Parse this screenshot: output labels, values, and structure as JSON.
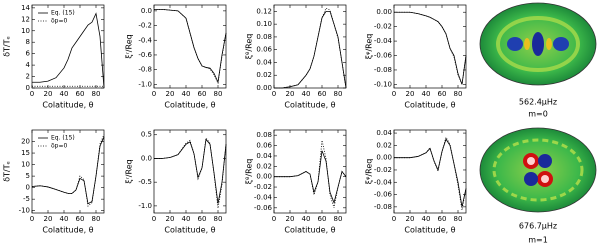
{
  "chart_data": [
    {
      "type": "line",
      "ylabel": "δT/Tₑ",
      "xlabel": "Colatitude, θ",
      "xlim": [
        0,
        90
      ],
      "xticks": [
        0,
        20,
        40,
        60,
        80
      ],
      "ylim": [
        0,
        14.5
      ],
      "yticks": [
        0,
        2,
        4,
        6,
        8,
        10,
        12,
        14
      ],
      "x": [
        0,
        10,
        20,
        30,
        40,
        45,
        50,
        55,
        60,
        65,
        70,
        75,
        80,
        85,
        90
      ],
      "series": [
        {
          "name": "Eq. (15)",
          "color": "#000000",
          "style": "solid",
          "values": [
            1,
            1,
            1.2,
            1.8,
            3.5,
            5,
            7,
            8,
            9,
            10,
            11,
            11.5,
            13,
            9,
            0
          ]
        },
        {
          "name": "δp=0",
          "color": "#000000",
          "style": "dotted",
          "values": [
            0.3,
            0.3,
            0.3,
            0.3,
            0.3,
            0.3,
            0.3,
            0.3,
            0.3,
            0.3,
            0.3,
            0.3,
            0.3,
            0.3,
            0.3
          ]
        }
      ]
    },
    {
      "type": "line",
      "ylabel": "ξʳ/Req",
      "xlabel": "Colatitude, θ",
      "xlim": [
        0,
        90
      ],
      "xticks": [
        0,
        20,
        40,
        60,
        80
      ],
      "ylim": [
        -1.05,
        0.08
      ],
      "yticks": [
        {
          "value": 0,
          "label": "0.0"
        },
        -0.2,
        -0.4,
        -0.6,
        -0.8,
        {
          "value": -1,
          "label": "-1.0"
        }
      ],
      "x": [
        0,
        10,
        20,
        30,
        40,
        45,
        50,
        55,
        60,
        65,
        70,
        75,
        80,
        85,
        90
      ],
      "series": [
        {
          "color": "#000000",
          "style": "solid",
          "values": [
            0.02,
            0.02,
            0.01,
            0,
            -0.1,
            -0.3,
            -0.5,
            -0.65,
            -0.75,
            -0.77,
            -0.78,
            -0.85,
            -0.97,
            -0.6,
            -0.3
          ]
        },
        {
          "color": "#000000",
          "style": "dotted",
          "values": [
            0.02,
            0.02,
            0.01,
            0,
            -0.1,
            -0.3,
            -0.5,
            -0.65,
            -0.75,
            -0.77,
            -0.79,
            -0.87,
            -0.98,
            -0.62,
            -0.3
          ]
        }
      ]
    },
    {
      "type": "line",
      "ylabel": "ξᶿ/Req",
      "xlabel": "Colatitude, θ",
      "xlim": [
        0,
        90
      ],
      "xticks": [
        0,
        20,
        40,
        60,
        80
      ],
      "ylim": [
        0,
        0.13
      ],
      "yticks": [
        {
          "value": 0,
          "label": "0.00"
        },
        0.02,
        0.04,
        0.06,
        0.08,
        {
          "value": 0.1,
          "label": "0.10"
        },
        0.12
      ],
      "x": [
        0,
        10,
        20,
        30,
        40,
        45,
        50,
        55,
        60,
        65,
        70,
        75,
        80,
        85,
        90
      ],
      "series": [
        {
          "color": "#000000",
          "style": "solid",
          "values": [
            0,
            0,
            0.002,
            0.005,
            0.02,
            0.03,
            0.05,
            0.08,
            0.11,
            0.12,
            0.12,
            0.1,
            0.08,
            0.04,
            0
          ]
        },
        {
          "color": "#000000",
          "style": "dotted",
          "values": [
            0,
            0,
            0.002,
            0.005,
            0.02,
            0.03,
            0.05,
            0.08,
            0.11,
            0.125,
            0.122,
            0.1,
            0.078,
            0.04,
            0
          ]
        }
      ]
    },
    {
      "type": "line",
      "ylabel": "ξᵠ/Req",
      "xlabel": "Colatitude, θ",
      "xlim": [
        0,
        90
      ],
      "xticks": [
        0,
        20,
        40,
        60,
        80
      ],
      "ylim": [
        -0.105,
        0.01
      ],
      "yticks": [
        {
          "value": 0,
          "label": "0.00"
        },
        -0.02,
        -0.04,
        -0.06,
        -0.08,
        {
          "value": -0.1,
          "label": "-0.10"
        }
      ],
      "x": [
        0,
        10,
        20,
        30,
        40,
        45,
        50,
        55,
        60,
        65,
        70,
        75,
        80,
        85,
        90
      ],
      "series": [
        {
          "color": "#000000",
          "style": "solid",
          "values": [
            0,
            0,
            0,
            -0.002,
            -0.005,
            -0.007,
            -0.01,
            -0.013,
            -0.02,
            -0.03,
            -0.05,
            -0.06,
            -0.085,
            -0.1,
            -0.06
          ]
        },
        {
          "color": "#000000",
          "style": "dotted",
          "values": [
            0,
            0,
            0,
            -0.002,
            -0.005,
            -0.007,
            -0.01,
            -0.013,
            -0.02,
            -0.03,
            -0.05,
            -0.062,
            -0.087,
            -0.1,
            -0.06
          ]
        }
      ]
    },
    {
      "type": "line",
      "ylabel": "δT/Tₑ",
      "xlabel": "Colatitude, θ",
      "xlim": [
        0,
        90
      ],
      "xticks": [
        0,
        20,
        40,
        60,
        80
      ],
      "ylim": [
        -11,
        25
      ],
      "yticks": [
        -10,
        -5,
        0,
        5,
        10,
        15,
        20
      ],
      "x": [
        0,
        10,
        20,
        30,
        40,
        45,
        50,
        55,
        60,
        65,
        70,
        75,
        80,
        85,
        90
      ],
      "series": [
        {
          "name": "Eq. (15)",
          "color": "#000000",
          "style": "solid",
          "values": [
            0.5,
            0.8,
            0.3,
            -0.8,
            -2,
            -2.5,
            -2.5,
            -1,
            4,
            3,
            -7,
            -6,
            5,
            18,
            22
          ]
        },
        {
          "name": "δp=0",
          "color": "#000000",
          "style": "dotted",
          "values": [
            0.5,
            0.8,
            0.3,
            -0.8,
            -2,
            -2.5,
            -2.6,
            -1,
            5,
            3.5,
            -8,
            -6.5,
            5,
            19,
            23
          ]
        }
      ]
    },
    {
      "type": "line",
      "ylabel": "ξʳ/Req",
      "xlabel": "Colatitude, θ",
      "xlim": [
        0,
        90
      ],
      "xticks": [
        0,
        20,
        40,
        60,
        80
      ],
      "ylim": [
        -1.15,
        0.6
      ],
      "yticks": [
        0.5,
        {
          "value": 0,
          "label": "0.0"
        },
        -0.5,
        {
          "value": -1,
          "label": "-1.0"
        }
      ],
      "x": [
        0,
        10,
        20,
        30,
        40,
        45,
        50,
        55,
        60,
        65,
        70,
        75,
        80,
        85,
        90
      ],
      "series": [
        {
          "color": "#000000",
          "style": "solid",
          "values": [
            0,
            0,
            0.02,
            0.08,
            0.3,
            0.35,
            0.1,
            -0.4,
            -0.2,
            0.4,
            0.3,
            -0.3,
            -0.95,
            -0.5,
            0.3
          ]
        },
        {
          "color": "#000000",
          "style": "dotted",
          "values": [
            0,
            0,
            0.02,
            0.08,
            0.32,
            0.38,
            0.1,
            -0.43,
            -0.2,
            0.43,
            0.32,
            -0.32,
            -1.05,
            -0.55,
            0.3
          ]
        }
      ]
    },
    {
      "type": "line",
      "ylabel": "ξᶿ/Req",
      "xlabel": "Colatitude, θ",
      "xlim": [
        0,
        90
      ],
      "xticks": [
        0,
        20,
        40,
        60,
        80
      ],
      "ylim": [
        -0.07,
        0.09
      ],
      "yticks": [
        -0.06,
        -0.04,
        -0.02,
        {
          "value": 0,
          "label": "0.00"
        },
        0.02,
        0.04,
        0.06,
        0.08
      ],
      "x": [
        0,
        10,
        20,
        30,
        40,
        45,
        50,
        55,
        60,
        65,
        70,
        75,
        80,
        85,
        90
      ],
      "series": [
        {
          "color": "#000000",
          "style": "solid",
          "values": [
            0,
            0,
            0,
            0.002,
            0.01,
            0.005,
            -0.03,
            -0.01,
            0.05,
            0.03,
            -0.03,
            -0.05,
            -0.02,
            0.01,
            0
          ]
        },
        {
          "color": "#000000",
          "style": "dotted",
          "values": [
            0,
            0,
            0,
            0.002,
            0.01,
            0.005,
            -0.035,
            -0.01,
            0.07,
            0.035,
            -0.035,
            -0.06,
            -0.02,
            0.01,
            0
          ]
        }
      ]
    },
    {
      "type": "line",
      "ylabel": "ξᵠ/Req",
      "xlabel": "Colatitude, θ",
      "xlim": [
        0,
        90
      ],
      "xticks": [
        0,
        20,
        40,
        60,
        80
      ],
      "ylim": [
        -0.09,
        0.045
      ],
      "yticks": [
        0.04,
        0.02,
        {
          "value": 0,
          "label": "0.00"
        },
        -0.02,
        -0.04,
        -0.06,
        -0.08
      ],
      "x": [
        0,
        10,
        20,
        30,
        40,
        45,
        50,
        55,
        60,
        65,
        70,
        75,
        80,
        85,
        90
      ],
      "series": [
        {
          "color": "#000000",
          "style": "solid",
          "values": [
            0,
            0,
            0,
            0.002,
            0.008,
            0.015,
            -0.005,
            -0.02,
            0.01,
            0.03,
            0.02,
            -0.01,
            -0.04,
            -0.08,
            -0.05
          ]
        },
        {
          "color": "#000000",
          "style": "dotted",
          "values": [
            0,
            0,
            0,
            0.002,
            0.008,
            0.016,
            -0.006,
            -0.022,
            0.01,
            0.033,
            0.022,
            -0.01,
            -0.045,
            -0.085,
            -0.05
          ]
        }
      ]
    }
  ],
  "mode_images": [
    {
      "frequency": "562.4μHz",
      "mode": "m=0"
    },
    {
      "frequency": "676.7μHz",
      "mode": "m=1"
    }
  ]
}
